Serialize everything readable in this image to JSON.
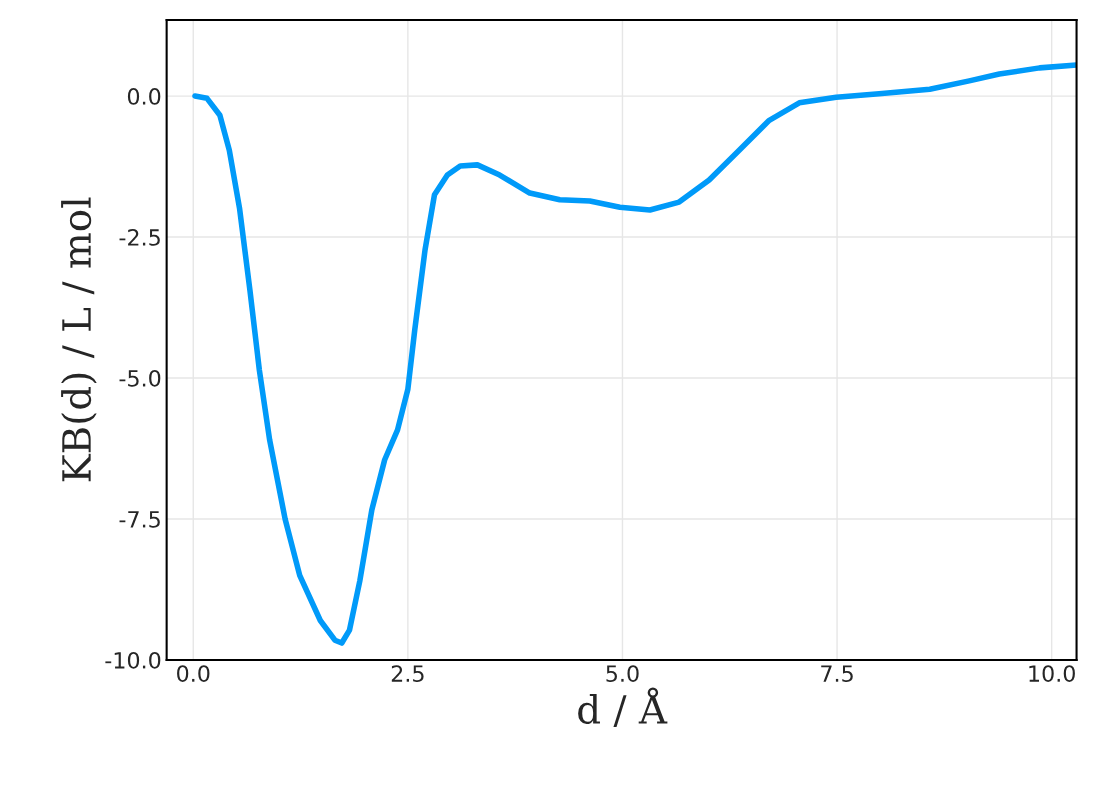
{
  "chart_data": {
    "type": "line",
    "xlabel": "d / Å",
    "ylabel": "KB(d) / L / mol",
    "x": [
      0.02,
      0.16,
      0.31,
      0.42,
      0.54,
      0.66,
      0.77,
      0.89,
      1.07,
      1.24,
      1.48,
      1.65,
      1.73,
      1.82,
      1.94,
      2.08,
      2.23,
      2.38,
      2.5,
      2.58,
      2.7,
      2.81,
      2.96,
      3.11,
      3.31,
      3.57,
      3.92,
      4.27,
      4.62,
      4.97,
      5.32,
      5.66,
      6.01,
      6.36,
      6.71,
      7.06,
      7.49,
      7.99,
      8.58,
      9.04,
      9.39,
      9.86,
      10.29
    ],
    "series": [
      {
        "color": "#009af9",
        "values": [
          0,
          -0.04,
          -0.34,
          -0.96,
          -2.0,
          -3.44,
          -4.86,
          -6.1,
          -7.5,
          -8.5,
          -9.3,
          -9.65,
          -9.7,
          -9.47,
          -8.6,
          -7.34,
          -6.45,
          -5.92,
          -5.2,
          -4.15,
          -2.73,
          -1.75,
          -1.4,
          -1.24,
          -1.22,
          -1.4,
          -1.72,
          -1.84,
          -1.86,
          -1.97,
          -2.02,
          -1.88,
          -1.49,
          -0.96,
          -0.43,
          -0.12,
          -0.02,
          0.04,
          0.12,
          0.27,
          0.39,
          0.5,
          0.55
        ]
      }
    ],
    "xlim": [
      -0.31,
      10.29
    ],
    "ylim": [
      -10.0,
      1.35
    ],
    "xticks": [
      {
        "value": 0,
        "label": "0.0"
      },
      {
        "value": 2.5,
        "label": "2.5"
      },
      {
        "value": 5,
        "label": "5.0"
      },
      {
        "value": 7.5,
        "label": "7.5"
      },
      {
        "value": 10,
        "label": "10.0"
      }
    ],
    "yticks": [
      {
        "value": -10,
        "label": "-10.0"
      },
      {
        "value": -7.5,
        "label": "-7.5"
      },
      {
        "value": -5,
        "label": "-5.0"
      },
      {
        "value": -2.5,
        "label": "-2.5"
      },
      {
        "value": 0,
        "label": "0.0"
      }
    ],
    "grid": true,
    "legend": false
  }
}
